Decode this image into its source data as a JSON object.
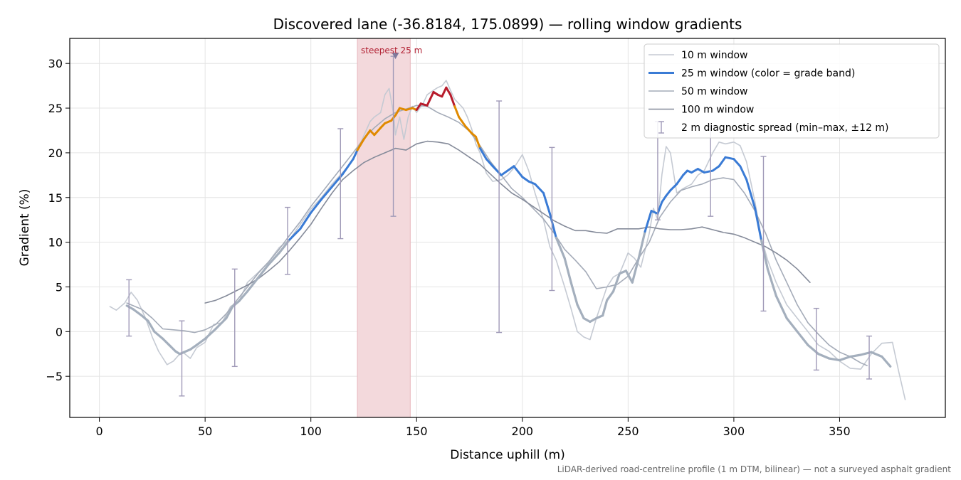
{
  "chart_data": {
    "type": "line",
    "title": "Discovered lane (-36.8184, 175.0899) — rolling window gradients",
    "xlabel": "Distance uphill (m)",
    "ylabel": "Gradient (%)",
    "footnote": "LiDAR-derived road-centreline profile (1 m DTM, bilinear) — not a surveyed asphalt gradient",
    "xlim": [
      -14,
      400
    ],
    "ylim": [
      -9.6,
      32.8
    ],
    "xticks": [
      0,
      50,
      100,
      150,
      200,
      250,
      300,
      350
    ],
    "yticks": [
      -5,
      0,
      5,
      10,
      15,
      20,
      25,
      30
    ],
    "grid": true,
    "legend_position": "top-right",
    "highlight": {
      "x_start": 122,
      "x_end": 147,
      "label": "steepest 25 m",
      "marker_x": 140,
      "marker_y": 30.8
    },
    "colors": {
      "w10": "#c5cad3",
      "w25_low": "#3a7bd5",
      "w25_mid": "#e08a00",
      "w25_high": "#b71c2c",
      "w25_neg": "#a4afbd",
      "w50": "#a4abb8",
      "w100": "#858b9a",
      "errbar": "#a09ab8",
      "highlight": "#f3d9dc"
    },
    "series": [
      {
        "name": "10 m window",
        "x": [
          5,
          8,
          12,
          15,
          18,
          22,
          25,
          28,
          32,
          35,
          38,
          40,
          43,
          46,
          50,
          54,
          58,
          62,
          66,
          70,
          75,
          80,
          85,
          90,
          95,
          100,
          105,
          110,
          115,
          120,
          125,
          128,
          130,
          133,
          135,
          137,
          139,
          140,
          142,
          144,
          146,
          148,
          150,
          153,
          155,
          158,
          160,
          162,
          164,
          166,
          168,
          170,
          172,
          174,
          176,
          178,
          180,
          183,
          186,
          190,
          193,
          196,
          200,
          203,
          206,
          210,
          213,
          216,
          220,
          223,
          226,
          229,
          232,
          235,
          238,
          240,
          243,
          246,
          250,
          253,
          256,
          260,
          262,
          264,
          266,
          268,
          270,
          273,
          276,
          280,
          283,
          286,
          290,
          293,
          296,
          300,
          303,
          306,
          310,
          313,
          316,
          320,
          325,
          330,
          335,
          340,
          345,
          350,
          355,
          360,
          365,
          370,
          375,
          378,
          381
        ],
        "y": [
          2.8,
          2.4,
          3.2,
          4.4,
          3.5,
          1.4,
          -0.6,
          -2.2,
          -3.7,
          -3.3,
          -2.5,
          -2.4,
          -3.0,
          -1.8,
          -1.2,
          0.8,
          1.0,
          2.8,
          3.4,
          5.5,
          6.6,
          7.8,
          9.4,
          10.3,
          12.0,
          13.7,
          15.0,
          16.5,
          17.8,
          19.2,
          21.9,
          23.5,
          24.0,
          24.5,
          26.5,
          27.2,
          24.5,
          22.0,
          24.0,
          21.5,
          24.0,
          25.2,
          24.5,
          25.5,
          26.5,
          27.0,
          27.3,
          27.5,
          28.1,
          27.0,
          26.0,
          25.5,
          25.0,
          24.0,
          22.7,
          21.0,
          20.0,
          17.7,
          16.8,
          17.0,
          17.5,
          18.3,
          19.8,
          18.0,
          15.5,
          12.5,
          9.5,
          8.0,
          5.0,
          2.6,
          0.0,
          -0.6,
          -0.9,
          1.5,
          3.6,
          5.0,
          6.1,
          6.5,
          8.8,
          8.2,
          7.2,
          11.0,
          13.8,
          12.5,
          17.6,
          20.7,
          20.0,
          15.5,
          16.0,
          16.5,
          17.5,
          18.0,
          20.0,
          21.2,
          21.0,
          21.2,
          20.8,
          19.0,
          14.5,
          10.5,
          8.0,
          5.5,
          3.0,
          1.5,
          0.0,
          -1.5,
          -2.2,
          -3.3,
          -4.1,
          -4.2,
          -2.5,
          -1.3,
          -1.2,
          -4.5,
          -7.6
        ]
      },
      {
        "name": "25 m window (color = grade band)",
        "x": [
          13,
          16,
          20,
          23,
          26,
          30,
          33,
          36,
          38,
          40,
          43,
          46,
          50,
          55,
          60,
          63,
          66,
          70,
          75,
          80,
          85,
          90,
          95,
          100,
          105,
          110,
          115,
          120,
          122,
          125,
          128,
          130,
          133,
          135,
          138,
          140,
          142,
          145,
          148,
          150,
          152,
          155,
          158,
          160,
          162,
          164,
          166,
          168,
          170,
          173,
          176,
          178,
          180,
          183,
          186,
          190,
          193,
          196,
          200,
          203,
          206,
          210,
          213,
          216,
          220,
          223,
          226,
          229,
          232,
          235,
          238,
          240,
          243,
          246,
          249,
          252,
          255,
          258,
          261,
          264,
          266,
          268,
          270,
          273,
          276,
          278,
          280,
          283,
          286,
          290,
          293,
          296,
          300,
          303,
          306,
          310,
          313,
          316,
          320,
          325,
          330,
          335,
          340,
          345,
          350,
          355,
          360,
          365,
          370,
          374
        ],
        "y": [
          2.9,
          2.5,
          1.8,
          1.2,
          0.0,
          -0.8,
          -1.5,
          -2.2,
          -2.5,
          -2.3,
          -2.0,
          -1.5,
          -0.8,
          0.3,
          1.5,
          2.8,
          3.4,
          4.5,
          6.0,
          7.5,
          8.8,
          10.3,
          11.5,
          13.3,
          14.8,
          16.2,
          17.6,
          19.3,
          20.3,
          21.5,
          22.5,
          22.0,
          22.8,
          23.3,
          23.6,
          24.2,
          25.0,
          24.8,
          25.0,
          24.8,
          25.5,
          25.3,
          26.8,
          26.5,
          26.3,
          27.3,
          26.5,
          25.2,
          24.0,
          23.0,
          22.2,
          21.8,
          20.5,
          19.3,
          18.5,
          17.5,
          18.0,
          18.5,
          17.3,
          16.8,
          16.5,
          15.5,
          13.2,
          10.5,
          8.2,
          5.5,
          3.0,
          1.5,
          1.1,
          1.5,
          1.8,
          3.5,
          4.5,
          6.5,
          6.8,
          5.5,
          8.2,
          11.2,
          13.5,
          13.2,
          14.5,
          15.2,
          15.8,
          16.5,
          17.5,
          18.0,
          17.8,
          18.2,
          17.8,
          18.0,
          18.5,
          19.5,
          19.3,
          18.5,
          17.0,
          13.8,
          10.2,
          7.0,
          4.0,
          1.5,
          0.0,
          -1.5,
          -2.5,
          -3.0,
          -3.2,
          -2.8,
          -2.6,
          -2.3,
          -2.8,
          -3.9
        ]
      },
      {
        "name": "50 m window",
        "x": [
          13,
          20,
          25,
          30,
          35,
          40,
          45,
          50,
          55,
          60,
          65,
          70,
          75,
          80,
          85,
          90,
          95,
          100,
          105,
          110,
          115,
          120,
          125,
          130,
          135,
          140,
          145,
          150,
          155,
          160,
          165,
          170,
          175,
          180,
          185,
          190,
          195,
          200,
          205,
          210,
          215,
          220,
          225,
          230,
          235,
          240,
          245,
          250,
          255,
          260,
          265,
          270,
          275,
          280,
          285,
          290,
          295,
          300,
          305,
          310,
          315,
          320,
          325,
          330,
          335,
          340,
          345,
          350,
          355,
          360,
          363
        ],
        "y": [
          3.2,
          2.5,
          1.5,
          0.3,
          0.2,
          0.1,
          -0.1,
          0.2,
          0.8,
          2.0,
          3.5,
          5.0,
          6.5,
          7.8,
          9.2,
          10.8,
          12.3,
          14.0,
          15.5,
          17.0,
          18.5,
          20.0,
          21.6,
          22.8,
          23.8,
          24.5,
          24.9,
          25.3,
          25.2,
          24.5,
          24.0,
          23.4,
          22.4,
          20.8,
          19.0,
          17.5,
          16.0,
          15.0,
          13.8,
          12.6,
          11.0,
          9.2,
          8.0,
          6.7,
          4.8,
          5.0,
          5.3,
          6.2,
          8.2,
          10.0,
          12.8,
          14.5,
          15.8,
          16.2,
          16.5,
          17.0,
          17.2,
          17.0,
          15.5,
          13.5,
          11.0,
          8.0,
          5.5,
          3.0,
          1.0,
          -0.3,
          -1.5,
          -2.3,
          -2.8,
          -3.5,
          -3.8
        ]
      },
      {
        "name": "100 m window",
        "x": [
          50,
          55,
          60,
          65,
          70,
          75,
          80,
          85,
          90,
          95,
          100,
          105,
          110,
          115,
          120,
          125,
          130,
          135,
          140,
          145,
          150,
          155,
          160,
          165,
          170,
          175,
          180,
          185,
          190,
          195,
          200,
          205,
          210,
          215,
          220,
          225,
          230,
          235,
          240,
          245,
          250,
          255,
          260,
          265,
          270,
          275,
          280,
          285,
          290,
          295,
          300,
          305,
          310,
          315,
          320,
          325,
          330,
          336
        ],
        "y": [
          3.2,
          3.5,
          4.0,
          4.6,
          5.2,
          5.9,
          6.8,
          7.8,
          9.1,
          10.5,
          12.0,
          13.8,
          15.5,
          17.0,
          18.0,
          18.9,
          19.5,
          20.0,
          20.5,
          20.3,
          21.0,
          21.3,
          21.2,
          21.0,
          20.3,
          19.5,
          18.7,
          17.6,
          16.5,
          15.5,
          14.8,
          14.0,
          13.2,
          12.4,
          11.8,
          11.3,
          11.3,
          11.1,
          11.0,
          11.5,
          11.5,
          11.5,
          11.7,
          11.5,
          11.4,
          11.4,
          11.5,
          11.7,
          11.4,
          11.1,
          10.9,
          10.5,
          10.0,
          9.5,
          8.8,
          8.0,
          7.0,
          5.5
        ]
      }
    ],
    "error_bars": [
      {
        "x": 14,
        "y": 2.9,
        "lo": -0.5,
        "hi": 5.8
      },
      {
        "x": 39,
        "y": -2.4,
        "lo": -7.2,
        "hi": 1.2
      },
      {
        "x": 64,
        "y": 3.0,
        "lo": -3.9,
        "hi": 7.0
      },
      {
        "x": 89,
        "y": 10.0,
        "lo": 6.4,
        "hi": 13.9
      },
      {
        "x": 114,
        "y": 17.0,
        "lo": 10.4,
        "hi": 22.7
      },
      {
        "x": 139,
        "y": 24.0,
        "lo": 12.9,
        "hi": 30.8
      },
      {
        "x": 189,
        "y": 18.5,
        "lo": -0.1,
        "hi": 25.8
      },
      {
        "x": 214,
        "y": 11.0,
        "lo": 4.6,
        "hi": 20.6
      },
      {
        "x": 264,
        "y": 14.5,
        "lo": 12.5,
        "hi": 23.5
      },
      {
        "x": 289,
        "y": 18.0,
        "lo": 12.9,
        "hi": 23.0
      },
      {
        "x": 314,
        "y": 10.0,
        "lo": 2.3,
        "hi": 19.6
      },
      {
        "x": 339,
        "y": -1.0,
        "lo": -4.3,
        "hi": 2.6
      },
      {
        "x": 364,
        "y": -2.5,
        "lo": -5.3,
        "hi": -0.5
      }
    ],
    "legend": [
      {
        "label": "10 m window",
        "style": "w10"
      },
      {
        "label": "25 m window (color = grade band)",
        "style": "w25"
      },
      {
        "label": "50 m window",
        "style": "w50"
      },
      {
        "label": "100 m window",
        "style": "w100"
      },
      {
        "label": "2 m diagnostic spread (min–max, ±12 m)",
        "style": "err"
      }
    ]
  }
}
